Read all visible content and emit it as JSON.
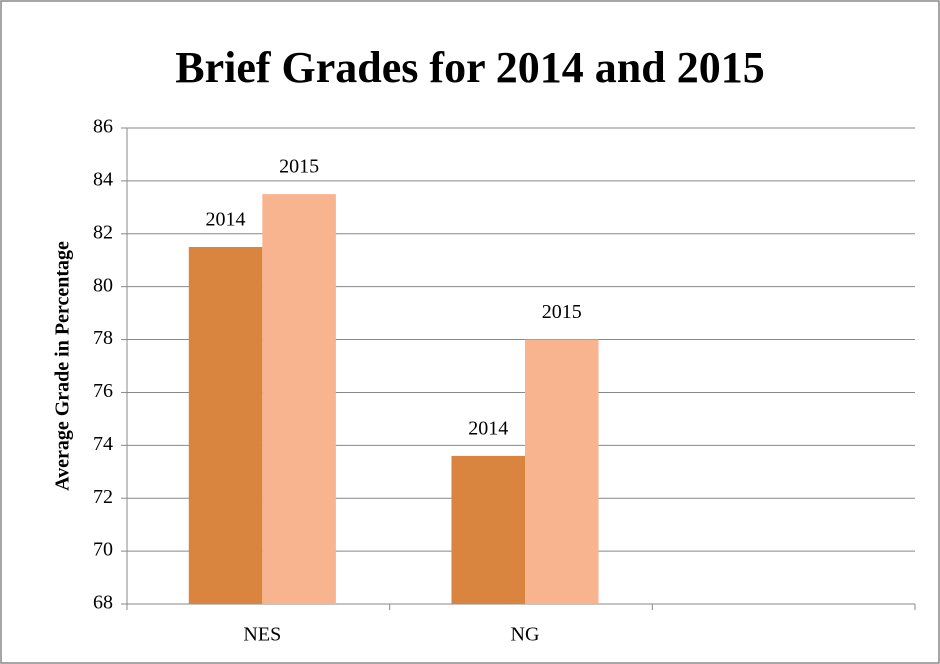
{
  "chart_data": {
    "type": "bar",
    "title": "Brief Grades for 2014 and 2015",
    "y_label": "Average Grade in Percentage",
    "categories": [
      "NES",
      "NG",
      null
    ],
    "series": [
      {
        "name": "2014",
        "color": "#d9843f",
        "values": [
          81.5,
          73.6,
          null
        ]
      },
      {
        "name": "2015",
        "color": "#f8b48f",
        "values": [
          83.5,
          78,
          null
        ]
      }
    ],
    "ylim": [
      68,
      86
    ],
    "yticks": [
      68,
      70,
      72,
      74,
      76,
      78,
      80,
      82,
      84,
      86
    ],
    "grid": true
  }
}
